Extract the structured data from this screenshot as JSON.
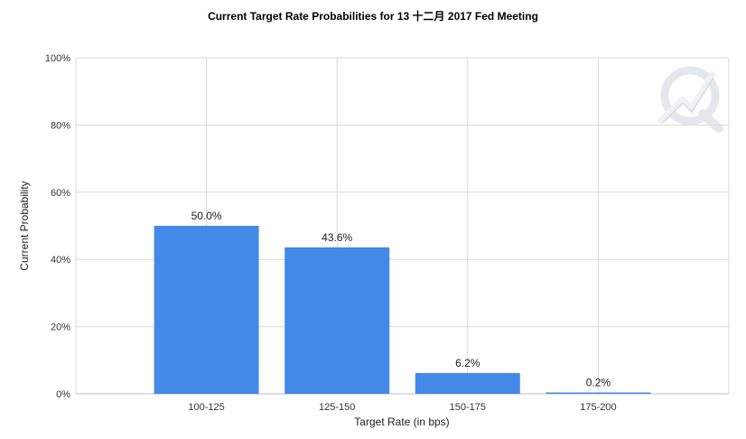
{
  "chart_data": {
    "type": "bar",
    "title": "Current Target Rate Probabilities for 13 十二月 2017 Fed Meeting",
    "xlabel": "Target Rate (in bps)",
    "ylabel": "Current Probability",
    "categories": [
      "100-125",
      "125-150",
      "150-175",
      "175-200"
    ],
    "values": [
      50.0,
      43.6,
      6.2,
      0.2
    ],
    "data_labels": [
      "50.0%",
      "43.6%",
      "6.2%",
      "0.2%"
    ],
    "ylim": [
      0,
      100
    ],
    "yticks": [
      0,
      20,
      40,
      60,
      80,
      100
    ],
    "ytick_labels": [
      "0%",
      "20%",
      "40%",
      "60%",
      "80%",
      "100%"
    ],
    "grid": true,
    "legend": "none",
    "bar_color": "#4589e8",
    "watermark_color": "#e6ecef"
  }
}
